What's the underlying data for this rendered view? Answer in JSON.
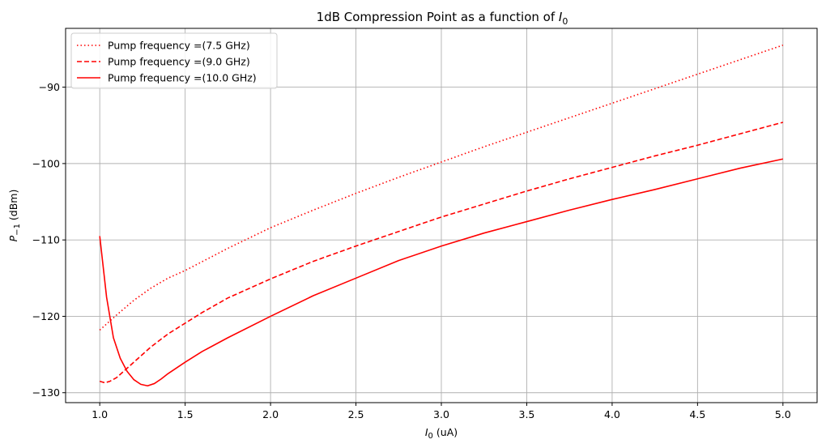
{
  "chart_data": {
    "type": "line",
    "title_main": "1dB Compression Point as a function of ",
    "title_sym": "I",
    "title_sub": "0",
    "xlabel_sym": "I",
    "xlabel_sub": "0",
    "xlabel_unit": " (uA)",
    "ylabel_sym": "P",
    "ylabel_sub": "−1",
    "ylabel_unit": " (dBm)",
    "xlim": [
      0.8,
      5.2
    ],
    "ylim": [
      -131.3,
      -82.3
    ],
    "xticks": [
      1.0,
      1.5,
      2.0,
      2.5,
      3.0,
      3.5,
      4.0,
      4.5,
      5.0
    ],
    "xtick_labels": [
      "1.0",
      "1.5",
      "2.0",
      "2.5",
      "3.0",
      "3.5",
      "4.0",
      "4.5",
      "5.0"
    ],
    "yticks": [
      -130,
      -120,
      -110,
      -100,
      -90
    ],
    "ytick_labels": [
      "−130",
      "−120",
      "−110",
      "−100",
      "−90"
    ],
    "grid": true,
    "legend_position": "top-left",
    "color": "#ff0000",
    "series": [
      {
        "name": "Pump frequency =(7.5 GHz)",
        "style": "dotted",
        "x": [
          1.0,
          1.1,
          1.2,
          1.3,
          1.4,
          1.5,
          1.75,
          2.0,
          2.25,
          2.5,
          2.75,
          3.0,
          3.25,
          3.5,
          3.75,
          4.0,
          4.25,
          4.5,
          4.75,
          5.0
        ],
        "y": [
          -121.8,
          -119.8,
          -117.9,
          -116.3,
          -115.0,
          -114.0,
          -111.1,
          -108.4,
          -106.1,
          -103.9,
          -101.8,
          -99.8,
          -97.8,
          -95.9,
          -94.0,
          -92.1,
          -90.2,
          -88.3,
          -86.4,
          -84.5
        ]
      },
      {
        "name": "Pump frequency =(9.0 GHz)",
        "style": "dashed",
        "x": [
          1.0,
          1.03,
          1.06,
          1.1,
          1.15,
          1.2,
          1.3,
          1.4,
          1.5,
          1.6,
          1.75,
          2.0,
          2.25,
          2.5,
          2.75,
          3.0,
          3.25,
          3.5,
          3.75,
          4.0,
          4.25,
          4.5,
          4.75,
          5.0
        ],
        "y": [
          -128.5,
          -128.7,
          -128.5,
          -128.0,
          -127.0,
          -126.0,
          -124.0,
          -122.3,
          -120.9,
          -119.5,
          -117.6,
          -115.1,
          -112.8,
          -110.8,
          -108.9,
          -107.0,
          -105.3,
          -103.6,
          -102.0,
          -100.5,
          -99.0,
          -97.6,
          -96.1,
          -94.6
        ]
      },
      {
        "name": "Pump frequency =(10.0 GHz)",
        "style": "solid",
        "x": [
          1.0,
          1.04,
          1.08,
          1.12,
          1.16,
          1.2,
          1.24,
          1.28,
          1.32,
          1.36,
          1.4,
          1.5,
          1.6,
          1.75,
          2.0,
          2.25,
          2.5,
          2.75,
          3.0,
          3.25,
          3.5,
          3.75,
          4.0,
          4.25,
          4.5,
          4.75,
          5.0
        ],
        "y": [
          -109.5,
          -117.5,
          -122.8,
          -125.5,
          -127.2,
          -128.3,
          -128.9,
          -129.1,
          -128.8,
          -128.2,
          -127.5,
          -126.0,
          -124.6,
          -122.8,
          -120.0,
          -117.3,
          -115.0,
          -112.7,
          -110.8,
          -109.1,
          -107.6,
          -106.1,
          -104.7,
          -103.4,
          -102.0,
          -100.6,
          -99.4
        ]
      }
    ]
  }
}
